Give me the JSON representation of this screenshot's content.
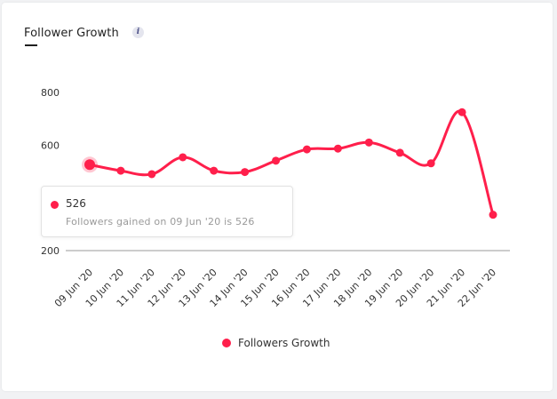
{
  "card": {
    "title": "Follower Growth",
    "info_glyph": "i"
  },
  "colors": {
    "series": "#ff1f4b",
    "axis": "#9a9a9a",
    "text": "#333333"
  },
  "tooltip": {
    "value": "526",
    "description": "Followers gained on 09 Jun '20 is 526"
  },
  "chart_data": {
    "type": "line",
    "title": "Follower Growth",
    "xlabel": "",
    "ylabel": "",
    "ylim": [
      200,
      800
    ],
    "yticks": [
      "800",
      "600",
      "200"
    ],
    "categories": [
      "09 Jun '20",
      "10 Jun '20",
      "11 Jun '20",
      "12 Jun '20",
      "13 Jun '20",
      "14 Jun '20",
      "15 Jun '20",
      "16 Jun '20",
      "17 Jun '20",
      "18 Jun '20",
      "19 Jun '20",
      "20 Jun '20",
      "21 Jun '20",
      "22 Jun '20"
    ],
    "series": [
      {
        "name": "Followers Growth",
        "values": [
          526,
          503,
          490,
          554,
          503,
          498,
          541,
          584,
          587,
          610,
          571,
          531,
          725,
          336
        ]
      }
    ],
    "legend": "bottom-center",
    "highlighted_index": 0
  }
}
